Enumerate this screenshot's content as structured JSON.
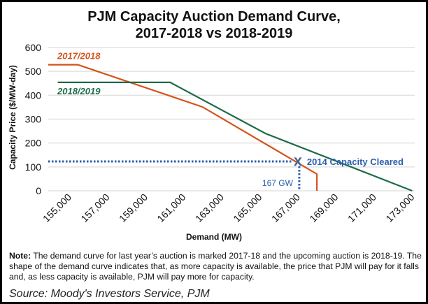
{
  "chart_data": {
    "type": "line",
    "title": "PJM Capacity Auction Demand Curve,",
    "subtitle": "2017-2018 vs 2018-2019",
    "xlabel": "Demand (MW)",
    "ylabel": "Capacity Price ($/MW-day)",
    "xlim": [
      153900,
      173500
    ],
    "ylim": [
      0,
      600
    ],
    "grid": "horizontal",
    "x_ticks": [
      "155,000",
      "157,000",
      "159,000",
      "161,000",
      "163,000",
      "165,000",
      "167,000",
      "169,000",
      "171,000",
      "173,000"
    ],
    "x_tick_values": [
      155000,
      157000,
      159000,
      161000,
      163000,
      165000,
      167000,
      169000,
      171000,
      173000
    ],
    "y_ticks": [
      "0",
      "100",
      "200",
      "300",
      "400",
      "500",
      "600"
    ],
    "y_tick_values": [
      0,
      100,
      200,
      300,
      400,
      500,
      600
    ],
    "series": [
      {
        "name": "2017/2018",
        "color": "#d4541c",
        "x": [
          153900,
          155450,
          162000,
          168000,
          168000
        ],
        "y": [
          528,
          528,
          351,
          70,
          0
        ]
      },
      {
        "name": "2018/2019",
        "color": "#1d6b47",
        "x": [
          154400,
          160300,
          165300,
          173000
        ],
        "y": [
          454,
          454,
          240,
          0
        ]
      }
    ],
    "annotations": {
      "cleared_label": "2014 Capacity Cleared",
      "cleared_x": 167000,
      "cleared_y": 123,
      "cleared_marker": "X",
      "gw_label": "167 GW",
      "color": "#2a5fae"
    }
  },
  "note": {
    "bold": "Note:",
    "text": " The demand curve for last year’s auction is marked 2017-18 and the upcoming auction is 2018-19. The shape of the demand curve indicates that, as more capacity is available, the price that PJM will pay for it falls and, as less capacity is available, PJM will pay more for capacity."
  },
  "source": "Source: Moody's Investors Service, PJM"
}
